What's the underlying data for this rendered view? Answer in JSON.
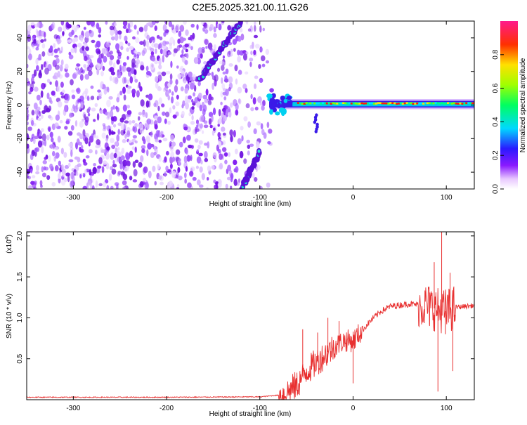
{
  "title": "C2E5.2025.321.00.11.G26",
  "chart_data": [
    {
      "type": "heatmap",
      "name": "spectrogram",
      "xlabel": "Height of straight line (km)",
      "ylabel": "Frequency (Hz)",
      "xlim": [
        -350,
        130
      ],
      "ylim": [
        -50,
        50
      ],
      "xticks": [
        -300,
        -200,
        -100,
        0,
        100
      ],
      "yticks": [
        -40,
        -20,
        0,
        20,
        40
      ],
      "colorbar": {
        "label": "Normalized spectral amplitude",
        "range": [
          0,
          1
        ],
        "ticks": [
          "0.0",
          "0.2",
          "0.4",
          "0.6",
          "0.8"
        ],
        "tick_values": [
          0,
          0.2,
          0.4,
          0.6,
          0.8
        ]
      },
      "features": {
        "noise_region_x": [
          -350,
          -95
        ],
        "carrier_frequency_hz": 0.5,
        "carrier_start_x": -90,
        "upper_streak": {
          "x": [
            -165,
            -120
          ],
          "freq": [
            15,
            50
          ]
        },
        "lower_streak": {
          "x": [
            -120,
            -100
          ],
          "freq": [
            -50,
            -28
          ]
        }
      }
    },
    {
      "type": "line",
      "name": "snr",
      "xlabel": "Height of straight line (km)",
      "ylabel": "SNR (10 * v/v)",
      "multiplier_label": "(x10",
      "multiplier_exp": "4",
      "xlim": [
        -350,
        130
      ],
      "ylim": [
        0,
        2.05
      ],
      "xticks": [
        -300,
        -200,
        -100,
        0,
        100
      ],
      "yticks": [
        "0.5",
        "1.0",
        "1.5",
        "2.0"
      ],
      "ytick_values": [
        0.5,
        1.0,
        1.5,
        2.0
      ],
      "color": "#e83030",
      "series": [
        {
          "x": -350,
          "y": 0.03
        },
        {
          "x": -200,
          "y": 0.03
        },
        {
          "x": -100,
          "y": 0.035
        },
        {
          "x": -75,
          "y": 0.06
        },
        {
          "x": -60,
          "y": 0.18
        },
        {
          "x": -50,
          "y": 0.35
        },
        {
          "x": -40,
          "y": 0.45
        },
        {
          "x": -30,
          "y": 0.55
        },
        {
          "x": -20,
          "y": 0.65
        },
        {
          "x": -10,
          "y": 0.72
        },
        {
          "x": 0,
          "y": 0.72
        },
        {
          "x": 10,
          "y": 0.85
        },
        {
          "x": 20,
          "y": 0.98
        },
        {
          "x": 30,
          "y": 1.08
        },
        {
          "x": 40,
          "y": 1.14
        },
        {
          "x": 60,
          "y": 1.17
        },
        {
          "x": 80,
          "y": 1.15
        },
        {
          "x": 90,
          "y": 1.1
        },
        {
          "x": 100,
          "y": 1.08
        },
        {
          "x": 110,
          "y": 1.13
        },
        {
          "x": 130,
          "y": 1.15
        }
      ],
      "spikes": [
        {
          "x": -54,
          "y": 0.86
        },
        {
          "x": -38,
          "y": 0.82
        },
        {
          "x": -27,
          "y": 1.0
        },
        {
          "x": -15,
          "y": 0.96
        },
        {
          "x": 0,
          "y": 0.2
        },
        {
          "x": 82,
          "y": 0.9
        },
        {
          "x": 87,
          "y": 1.68
        },
        {
          "x": 91,
          "y": 0.1
        },
        {
          "x": 95,
          "y": 2.05
        },
        {
          "x": 99,
          "y": 0.8
        },
        {
          "x": 104,
          "y": 1.55
        },
        {
          "x": 107,
          "y": 0.35
        }
      ]
    }
  ]
}
